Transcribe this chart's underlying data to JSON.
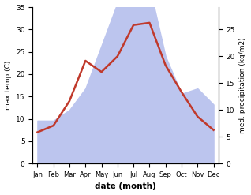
{
  "months": [
    "Jan",
    "Feb",
    "Mar",
    "Apr",
    "May",
    "Jun",
    "Jul",
    "Aug",
    "Sep",
    "Oct",
    "Nov",
    "Dec"
  ],
  "temperature": [
    7.0,
    8.5,
    14.0,
    23.0,
    20.5,
    24.0,
    31.0,
    31.5,
    22.0,
    16.0,
    10.5,
    7.5
  ],
  "precipitation": [
    8,
    8,
    10,
    14,
    22,
    30,
    35,
    33,
    20,
    13,
    14,
    11
  ],
  "temp_color": "#c0392b",
  "precip_fill_color": "#bcc5ee",
  "temp_ylim": [
    0,
    35
  ],
  "precip_ylim": [
    0,
    29.17
  ],
  "precip_yticks": [
    0,
    5,
    10,
    15,
    20,
    25
  ],
  "temp_yticks": [
    0,
    5,
    10,
    15,
    20,
    25,
    30,
    35
  ],
  "ylabel_left": "max temp (C)",
  "ylabel_right": "med. precipitation (kg/m2)",
  "xlabel": "date (month)",
  "line_width": 1.8
}
